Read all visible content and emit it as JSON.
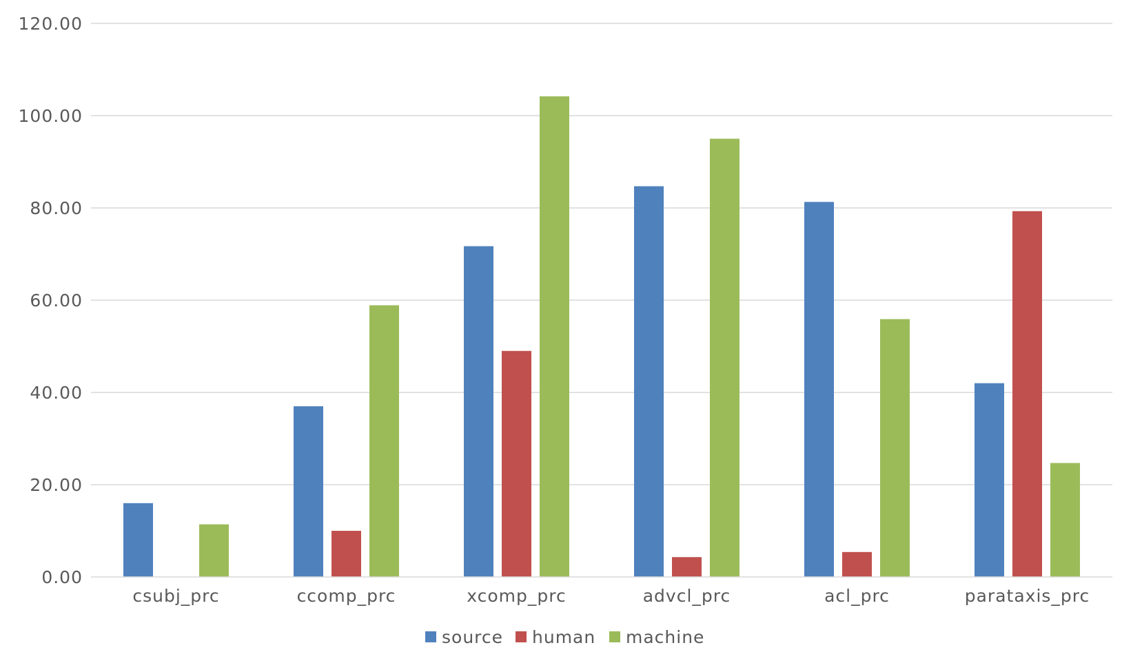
{
  "chart_data": {
    "type": "bar",
    "title": "",
    "xlabel": "",
    "ylabel": "",
    "categories": [
      "csubj_prc",
      "ccomp_prc",
      "xcomp_prc",
      "advcl_prc",
      "acl_prc",
      "parataxis_prc"
    ],
    "series": [
      {
        "name": "source",
        "color": "#4f81bd",
        "values": [
          16.0,
          37.0,
          71.7,
          84.7,
          81.3,
          42.0
        ]
      },
      {
        "name": "human",
        "color": "#c0504d",
        "values": [
          0.0,
          10.0,
          49.0,
          4.3,
          5.4,
          79.3
        ]
      },
      {
        "name": "machine",
        "color": "#9bbb59",
        "values": [
          11.4,
          58.9,
          104.2,
          95.0,
          55.9,
          24.7
        ]
      }
    ],
    "ylim": [
      0,
      120
    ],
    "yticks": [
      "0.00",
      "20.00",
      "40.00",
      "60.00",
      "80.00",
      "100.00",
      "120.00"
    ],
    "grid": true,
    "legend_position": "bottom"
  }
}
